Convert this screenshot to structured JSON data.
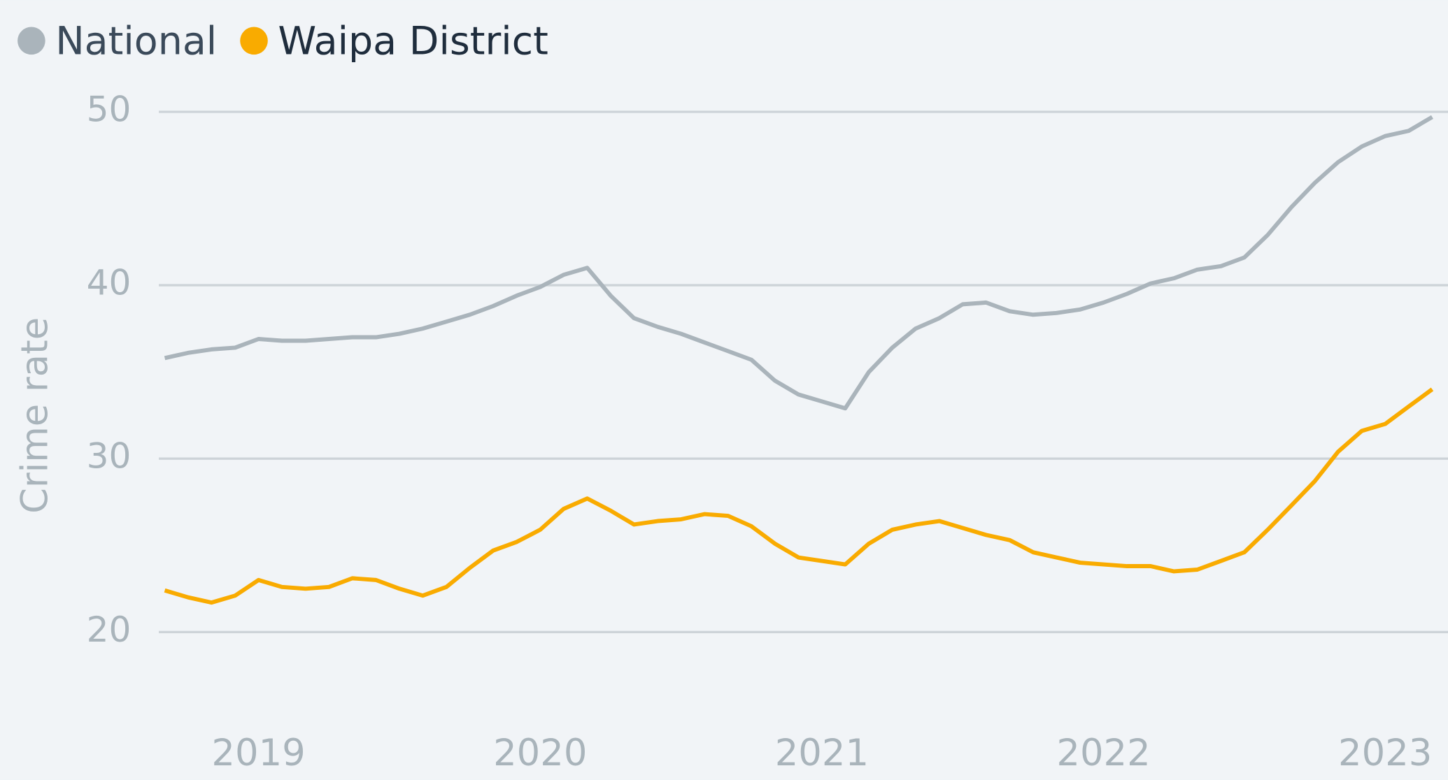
{
  "chart_data": {
    "type": "line",
    "x": [
      2018.667,
      2018.75,
      2018.833,
      2018.917,
      2019,
      2019.083,
      2019.167,
      2019.25,
      2019.333,
      2019.417,
      2019.5,
      2019.583,
      2019.667,
      2019.75,
      2019.833,
      2019.917,
      2020,
      2020.083,
      2020.167,
      2020.25,
      2020.333,
      2020.417,
      2020.5,
      2020.583,
      2020.667,
      2020.75,
      2020.833,
      2020.917,
      2021,
      2021.083,
      2021.167,
      2021.25,
      2021.333,
      2021.417,
      2021.5,
      2021.583,
      2021.667,
      2021.75,
      2021.833,
      2021.917,
      2022,
      2022.083,
      2022.167,
      2022.25,
      2022.333,
      2022.417,
      2022.5,
      2022.583,
      2022.667,
      2022.75,
      2022.833,
      2022.917,
      2023,
      2023.083,
      2023.167
    ],
    "series": [
      {
        "name": "National",
        "color": "#aab4bb",
        "values": [
          35.8,
          36.1,
          36.3,
          36.4,
          36.9,
          36.8,
          36.8,
          36.9,
          37.0,
          37.0,
          37.2,
          37.5,
          37.9,
          38.3,
          38.8,
          39.4,
          39.9,
          40.6,
          41.0,
          39.4,
          38.1,
          37.6,
          37.2,
          36.7,
          36.2,
          35.7,
          34.5,
          33.7,
          33.3,
          32.9,
          35.0,
          36.4,
          37.5,
          38.1,
          38.9,
          39.0,
          38.5,
          38.3,
          38.4,
          38.6,
          39.0,
          39.5,
          40.1,
          40.4,
          40.9,
          41.1,
          41.6,
          42.9,
          44.5,
          45.9,
          47.1,
          48.0,
          48.6,
          48.9,
          49.7
        ]
      },
      {
        "name": "Waipa District",
        "color": "#f9ab00",
        "values": [
          22.4,
          22.0,
          21.7,
          22.1,
          23.0,
          22.6,
          22.5,
          22.6,
          23.1,
          23.0,
          22.5,
          22.1,
          22.6,
          23.7,
          24.7,
          25.2,
          25.9,
          27.1,
          27.7,
          27.0,
          26.2,
          26.4,
          26.5,
          26.8,
          26.7,
          26.1,
          25.1,
          24.3,
          24.1,
          23.9,
          25.1,
          25.9,
          26.2,
          26.4,
          26.0,
          25.6,
          25.3,
          24.6,
          24.3,
          24.0,
          23.9,
          23.8,
          23.8,
          23.5,
          23.6,
          24.1,
          24.6,
          25.9,
          27.3,
          28.7,
          30.4,
          31.6,
          32.0,
          33.0,
          34.0
        ]
      }
    ],
    "y_label": "Crime rate",
    "xlim": [
      2018.646,
      2023.223
    ],
    "xticks": [
      2019,
      2020,
      2021,
      2022,
      2023
    ],
    "ylim": [
      16,
      50
    ],
    "yticks": [
      20,
      30,
      40,
      50
    ],
    "grid": true,
    "legend": "top-left"
  }
}
